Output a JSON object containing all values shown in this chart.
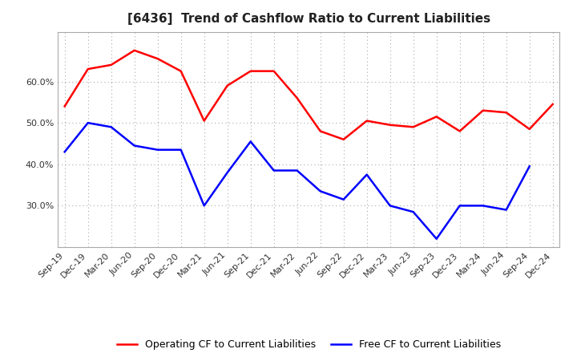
{
  "title": "[6436]  Trend of Cashflow Ratio to Current Liabilities",
  "x_labels": [
    "Sep-19",
    "Dec-19",
    "Mar-20",
    "Jun-20",
    "Sep-20",
    "Dec-20",
    "Mar-21",
    "Jun-21",
    "Sep-21",
    "Dec-21",
    "Mar-22",
    "Jun-22",
    "Sep-22",
    "Dec-22",
    "Mar-23",
    "Jun-23",
    "Sep-23",
    "Dec-23",
    "Mar-24",
    "Jun-24",
    "Sep-24",
    "Dec-24"
  ],
  "operating_cf": [
    54.0,
    63.0,
    64.0,
    67.5,
    65.5,
    62.5,
    50.5,
    59.0,
    62.5,
    62.5,
    56.0,
    48.0,
    46.0,
    50.5,
    49.5,
    49.0,
    51.5,
    48.0,
    53.0,
    52.5,
    48.5,
    54.5
  ],
  "free_cf": [
    43.0,
    50.0,
    49.0,
    44.5,
    43.5,
    43.5,
    30.0,
    38.0,
    45.5,
    38.5,
    38.5,
    33.5,
    31.5,
    37.5,
    30.0,
    28.5,
    22.0,
    30.0,
    30.0,
    29.0,
    39.5,
    null
  ],
  "operating_color": "#FF0000",
  "free_color": "#0000FF",
  "ylim_min": 20.0,
  "ylim_max": 72.0,
  "yticks": [
    30.0,
    40.0,
    50.0,
    60.0
  ],
  "background_color": "#FFFFFF",
  "plot_bg_color": "#FFFFFF",
  "grid_color": "#AAAAAA",
  "legend_operating": "Operating CF to Current Liabilities",
  "legend_free": "Free CF to Current Liabilities",
  "title_fontsize": 11,
  "tick_fontsize": 8,
  "legend_fontsize": 9
}
